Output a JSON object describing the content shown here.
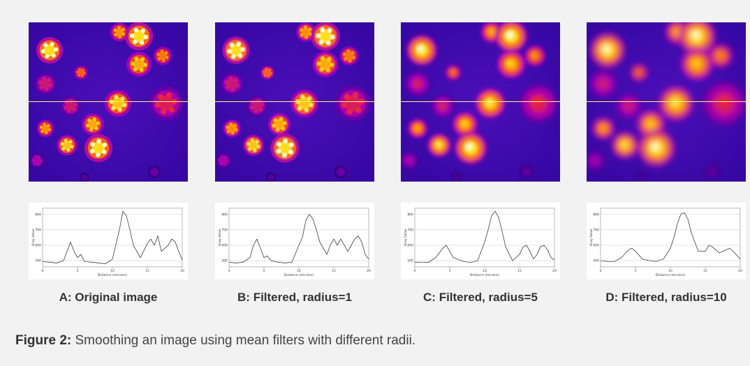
{
  "figure": {
    "panels": [
      {
        "id": "A",
        "label": "A: Original image",
        "radius": 0
      },
      {
        "id": "B",
        "label": "B: Filtered, radius=1",
        "radius": 1
      },
      {
        "id": "C",
        "label": "C: Filtered, radius=5",
        "radius": 5
      },
      {
        "id": "D",
        "label": "D: Filtered, radius=10",
        "radius": 10
      }
    ],
    "caption": {
      "prefix": "Figure 2:",
      "text": " Smoothing an image using mean filters with different radii."
    },
    "colors": {
      "background": "#f2f2f2",
      "profile_line": "#ffff66",
      "lut": "fire"
    }
  },
  "chart_data": [
    {
      "type": "line",
      "xlabel": "Distance (microns)",
      "ylabel": "Gray Value",
      "x_ticks": [
        0,
        5,
        10,
        15,
        20
      ],
      "y_ticks": [
        500,
        600,
        700,
        800
      ],
      "xlim": [
        0,
        20
      ],
      "ylim": [
        460,
        840
      ],
      "grid": true,
      "series": [
        {
          "x": [
            0,
            1,
            2,
            3,
            3.5,
            4,
            4.5,
            5,
            5.5,
            6,
            7,
            8,
            9,
            10,
            11,
            11.5,
            12,
            12.5,
            13,
            14,
            15,
            15.5,
            16,
            16.5,
            17,
            18,
            18.5,
            19,
            19.5,
            20
          ],
          "values": [
            495,
            490,
            485,
            500,
            560,
            620,
            560,
            520,
            540,
            495,
            490,
            485,
            480,
            510,
            700,
            820,
            790,
            700,
            600,
            520,
            610,
            640,
            600,
            660,
            560,
            600,
            640,
            620,
            560,
            505
          ]
        }
      ]
    },
    {
      "type": "line",
      "xlabel": "Distance (microns)",
      "ylabel": "Gray Value",
      "x_ticks": [
        0,
        5,
        10,
        15,
        20
      ],
      "y_ticks": [
        500,
        600,
        700,
        800
      ],
      "xlim": [
        0,
        20
      ],
      "ylim": [
        460,
        840
      ],
      "grid": true,
      "series": [
        {
          "x": [
            0,
            1,
            2,
            3,
            3.5,
            4,
            4.5,
            5,
            5.5,
            6,
            7,
            8,
            9,
            10,
            10.5,
            11,
            11.5,
            12,
            12.5,
            13,
            14,
            14.5,
            15,
            15.5,
            16,
            16.5,
            17,
            18,
            18.5,
            19,
            19.5,
            20
          ],
          "values": [
            490,
            485,
            490,
            520,
            600,
            640,
            580,
            520,
            530,
            500,
            490,
            485,
            490,
            600,
            650,
            760,
            800,
            770,
            700,
            620,
            540,
            600,
            640,
            600,
            640,
            600,
            560,
            640,
            660,
            620,
            540,
            510
          ]
        }
      ]
    },
    {
      "type": "line",
      "xlabel": "Distance (microns)",
      "ylabel": "Gray Value",
      "x_ticks": [
        0,
        5,
        10,
        15,
        20
      ],
      "y_ticks": [
        500,
        600,
        700,
        800
      ],
      "xlim": [
        0,
        20
      ],
      "ylim": [
        460,
        840
      ],
      "grid": true,
      "series": [
        {
          "x": [
            0,
            1,
            2,
            3,
            4,
            4.5,
            5,
            5.5,
            6,
            7,
            8,
            9,
            9.5,
            10,
            10.5,
            11,
            11.5,
            12,
            12.5,
            13,
            14,
            15,
            15.5,
            16,
            16.5,
            17,
            17.5,
            18,
            18.5,
            19,
            19.5,
            20
          ],
          "values": [
            490,
            488,
            490,
            520,
            580,
            600,
            560,
            520,
            510,
            495,
            488,
            500,
            560,
            620,
            700,
            790,
            820,
            780,
            690,
            590,
            500,
            540,
            590,
            600,
            560,
            510,
            540,
            590,
            600,
            570,
            520,
            505
          ]
        }
      ]
    },
    {
      "type": "line",
      "xlabel": "Distance (microns)",
      "ylabel": "Gray Value",
      "x_ticks": [
        0,
        5,
        10,
        15,
        20
      ],
      "y_ticks": [
        500,
        600,
        700,
        800
      ],
      "xlim": [
        0,
        20
      ],
      "ylim": [
        460,
        840
      ],
      "grid": true,
      "series": [
        {
          "x": [
            0,
            1,
            2,
            3,
            4,
            4.5,
            5,
            6,
            7,
            8,
            9,
            10,
            10.5,
            11,
            11.5,
            12,
            12.5,
            13,
            14,
            15,
            15.5,
            16,
            17,
            18,
            18.5,
            19,
            20
          ],
          "values": [
            500,
            495,
            495,
            520,
            570,
            580,
            560,
            510,
            500,
            495,
            510,
            580,
            650,
            740,
            800,
            810,
            770,
            680,
            560,
            560,
            600,
            590,
            550,
            570,
            580,
            560,
            510
          ]
        }
      ]
    }
  ]
}
